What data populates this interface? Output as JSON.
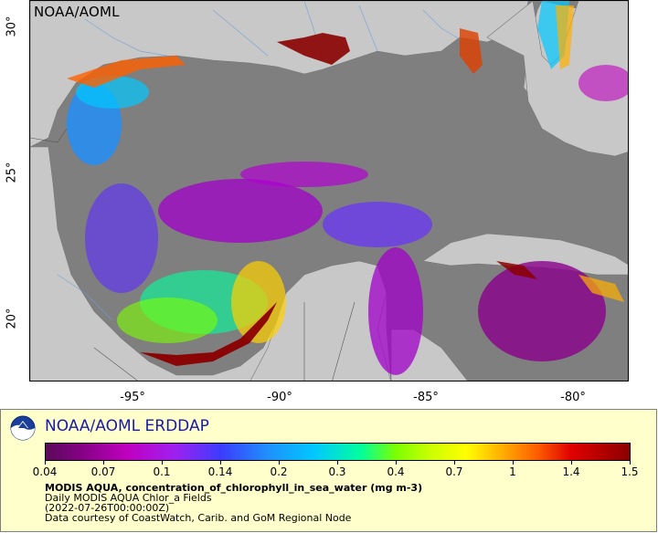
{
  "map": {
    "credit": "NOAA/AOML",
    "lat_labels": [
      "30°",
      "25°",
      "20°"
    ],
    "lon_labels": [
      "-95°",
      "-90°",
      "-85°",
      "-80°"
    ],
    "colors": {
      "ocean_no_data": "#7f7f7f",
      "land": "#c8c8c8",
      "rivers": "#6a9fd8",
      "borders": "#555555"
    }
  },
  "legend": {
    "org_title": "NOAA/AOML ERDDAP",
    "colorbar_ticks": [
      "0.04",
      "0.07",
      "0.1",
      "0.14",
      "0.2",
      "0.3",
      "0.4",
      "0.7",
      "1",
      "1.4",
      "1.5"
    ],
    "title": "MODIS AQUA, concentration_of_chlorophyll_in_sea_water (mg m-3)",
    "subtitle": "Daily MODIS AQUA Chlor_a Fields",
    "time": "(2022-07-26T00:00:00Z)",
    "credit": "Data courtesy of CoastWatch, Carib. and GoM Regional Node",
    "colors": {
      "panel_bg": "#ffffcc",
      "title_blue": "#1a1aa8"
    }
  }
}
